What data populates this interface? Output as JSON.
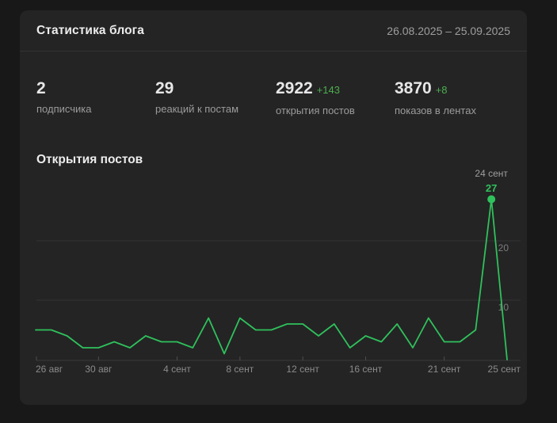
{
  "header": {
    "title": "Статистика блога",
    "date_range": "26.08.2025 – 25.09.2025"
  },
  "stats": [
    {
      "value": "2",
      "delta": "",
      "label": "подписчика"
    },
    {
      "value": "29",
      "delta": "",
      "label": "реакций к постам"
    },
    {
      "value": "2922",
      "delta": "+143",
      "label": "открытия постов"
    },
    {
      "value": "3870",
      "delta": "+8",
      "label": "показов в лентах"
    }
  ],
  "chart_data": {
    "type": "line",
    "title": "Открытия постов",
    "num_points": 31,
    "values": [
      5,
      5,
      4,
      2,
      2,
      3,
      2,
      4,
      3,
      3,
      2,
      7,
      1,
      7,
      5,
      5,
      6,
      6,
      4,
      6,
      2,
      4,
      3,
      6,
      2,
      7,
      3,
      3,
      5,
      27,
      0
    ],
    "x_ticks": [
      {
        "label": "26 авг",
        "index": 0
      },
      {
        "label": "30 авг",
        "index": 4
      },
      {
        "label": "4 сент",
        "index": 9
      },
      {
        "label": "8 сент",
        "index": 13
      },
      {
        "label": "12 сент",
        "index": 17
      },
      {
        "label": "16 сент",
        "index": 21
      },
      {
        "label": "21 сент",
        "index": 26
      },
      {
        "label": "25 сент",
        "index": 30
      }
    ],
    "y_ticks": [
      {
        "label": "10",
        "value": 10
      },
      {
        "label": "20",
        "value": 20
      }
    ],
    "ylim": [
      0,
      30.5
    ],
    "grid": "horizontal",
    "legend": "none",
    "annotation": {
      "index": 29,
      "date_label": "24 сент",
      "value_label": "27",
      "value": 27
    }
  },
  "colors": {
    "page_background": "#181818",
    "card_background": "#242424",
    "line_green": "#2fc15c",
    "delta_green": "#4caf50",
    "text_primary": "#ececec",
    "text_secondary": "#9b9b9b",
    "axis_label": "#8b8b8b",
    "grid_line": "#343434",
    "axis_line": "#3a3a3a",
    "tick_mark": "#4d4d4d",
    "annotation_date": "#9e9e9e"
  }
}
